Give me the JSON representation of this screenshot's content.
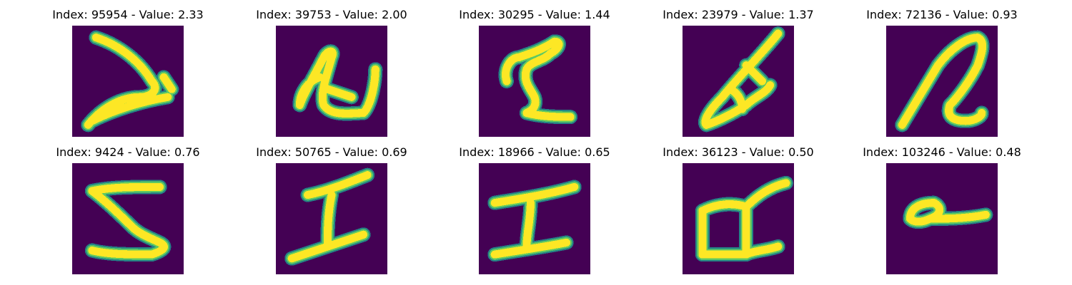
{
  "colors": {
    "background": "#440154",
    "stroke_edge": "#21918c",
    "stroke_mid": "#5ec962",
    "stroke_core": "#fde725"
  },
  "panels": [
    {
      "title": "Index: 95954 - Value: 2.33",
      "glyph": "handwritten-2-sideways"
    },
    {
      "title": "Index: 39753 - Value: 2.00",
      "glyph": "handwritten-loop-u"
    },
    {
      "title": "Index: 30295 - Value: 1.44",
      "glyph": "handwritten-2"
    },
    {
      "title": "Index: 23979 - Value: 1.37",
      "glyph": "handwritten-slanted-a"
    },
    {
      "title": "Index: 72136 - Value: 0.93",
      "glyph": "handwritten-slanted-2"
    },
    {
      "title": "Index: 9424 - Value: 0.76",
      "glyph": "handwritten-5"
    },
    {
      "title": "Index: 50765 - Value: 0.69",
      "glyph": "handwritten-i"
    },
    {
      "title": "Index: 18966 - Value: 0.65",
      "glyph": "handwritten-i-bold"
    },
    {
      "title": "Index: 36123 - Value: 0.50",
      "glyph": "handwritten-box-a"
    },
    {
      "title": "Index: 103246 - Value: 0.48",
      "glyph": "handwritten-small-loop"
    }
  ]
}
